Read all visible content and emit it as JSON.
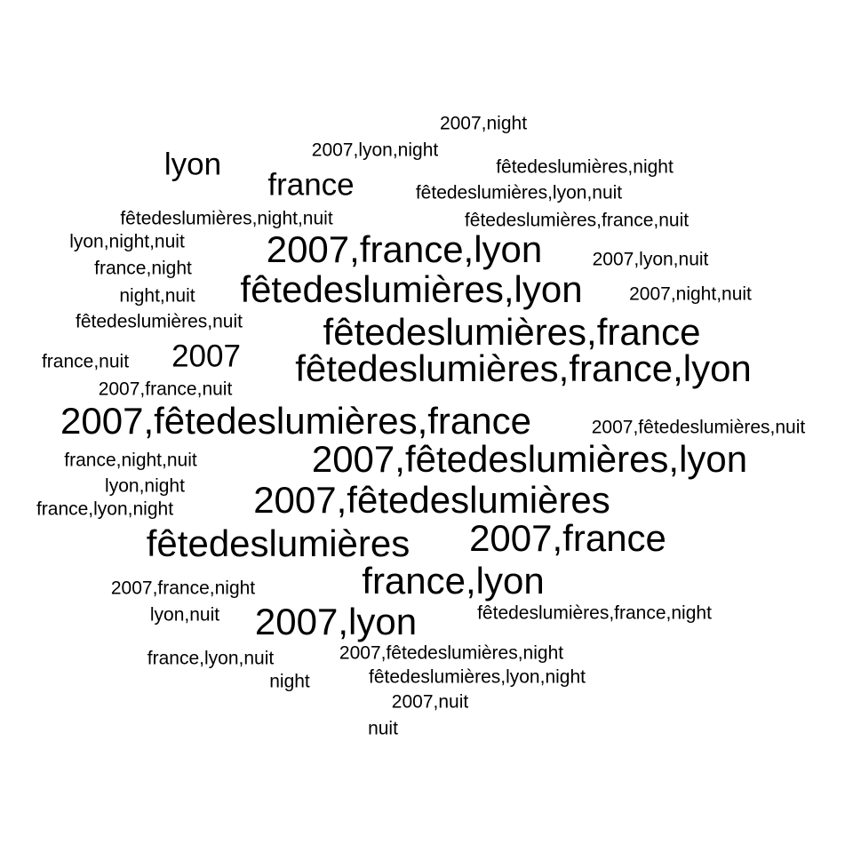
{
  "cloud": {
    "text_color": "#000000",
    "background": "#ffffff",
    "words": [
      {
        "text": "2007,night",
        "weight": 1
      },
      {
        "text": "2007,lyon,night",
        "weight": 1
      },
      {
        "text": "lyon",
        "weight": 3
      },
      {
        "text": "fêtedeslumières,night",
        "weight": 1
      },
      {
        "text": "france",
        "weight": 3
      },
      {
        "text": "fêtedeslumières,lyon,nuit",
        "weight": 1
      },
      {
        "text": "fêtedeslumières,night,nuit",
        "weight": 1
      },
      {
        "text": "fêtedeslumières,france,nuit",
        "weight": 1
      },
      {
        "text": "lyon,night,nuit",
        "weight": 1
      },
      {
        "text": "2007,france,lyon",
        "weight": 4
      },
      {
        "text": "2007,lyon,nuit",
        "weight": 1
      },
      {
        "text": "france,night",
        "weight": 1
      },
      {
        "text": "fêtedeslumières,lyon",
        "weight": 4
      },
      {
        "text": "night,nuit",
        "weight": 1
      },
      {
        "text": "2007,night,nuit",
        "weight": 1
      },
      {
        "text": "fêtedeslumières,nuit",
        "weight": 1
      },
      {
        "text": "fêtedeslumières,france",
        "weight": 4
      },
      {
        "text": "2007",
        "weight": 3
      },
      {
        "text": "france,nuit",
        "weight": 1
      },
      {
        "text": "fêtedeslumières,france,lyon",
        "weight": 4
      },
      {
        "text": "2007,france,nuit",
        "weight": 1
      },
      {
        "text": "2007,fêtedeslumières,france",
        "weight": 4
      },
      {
        "text": "2007,fêtedeslumières,nuit",
        "weight": 1
      },
      {
        "text": "france,night,nuit",
        "weight": 1
      },
      {
        "text": "2007,fêtedeslumières,lyon",
        "weight": 4
      },
      {
        "text": "lyon,night",
        "weight": 1
      },
      {
        "text": "france,lyon,night",
        "weight": 1
      },
      {
        "text": "2007,fêtedeslumières",
        "weight": 4
      },
      {
        "text": "fêtedeslumières",
        "weight": 4
      },
      {
        "text": "2007,france",
        "weight": 4
      },
      {
        "text": "2007,france,night",
        "weight": 1
      },
      {
        "text": "france,lyon",
        "weight": 4
      },
      {
        "text": "lyon,nuit",
        "weight": 1
      },
      {
        "text": "2007,lyon",
        "weight": 4
      },
      {
        "text": "fêtedeslumières,france,night",
        "weight": 1
      },
      {
        "text": "france,lyon,nuit",
        "weight": 1
      },
      {
        "text": "2007,fêtedeslumières,night",
        "weight": 1
      },
      {
        "text": "night",
        "weight": 1
      },
      {
        "text": "fêtedeslumières,lyon,night",
        "weight": 1
      },
      {
        "text": "2007,nuit",
        "weight": 1
      },
      {
        "text": "nuit",
        "weight": 1
      }
    ]
  }
}
